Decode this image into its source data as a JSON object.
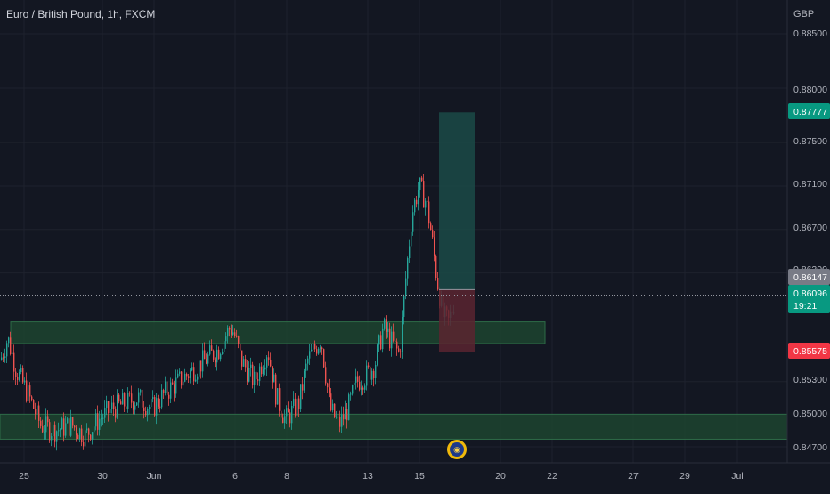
{
  "header": {
    "symbol_title": "Euro / British Pound, 1h, FXCM",
    "currency": "GBP"
  },
  "price_axis": {
    "ticks": [
      "0.88500",
      "0.88000",
      "0.87500",
      "0.87100",
      "0.86700",
      "0.86300",
      "0.85300",
      "0.85000",
      "0.84700"
    ]
  },
  "time_axis": {
    "ticks": [
      "25",
      "30",
      "Jun",
      "6",
      "8",
      "13",
      "15",
      "20",
      "22",
      "27",
      "29",
      "Jul"
    ]
  },
  "badges": {
    "target_price": "0.87777",
    "entry_price": "0.86147",
    "last_price": "0.86096",
    "countdown": "19:21",
    "stop_price": "0.85575"
  },
  "colors": {
    "background": "#131722",
    "grid": "#1e222d",
    "up_candle": "#26a69a",
    "down_candle": "#ef5350",
    "zone_fill": "#1f4b32",
    "target_fill": "#1b4a46",
    "stop_fill": "#5a2430",
    "target_badge": "#089981",
    "stop_badge": "#f23645",
    "entry_badge": "#787b86",
    "last_badge": "#089981"
  },
  "chart_data": {
    "type": "candlestick",
    "symbol": "EURGBP",
    "timeframe": "1h",
    "y_range": [
      0.846,
      0.887
    ],
    "x_ticks": [
      "25",
      "30",
      "Jun",
      "6",
      "8",
      "13",
      "15",
      "20",
      "22",
      "27",
      "29",
      "Jul"
    ],
    "y_ticks": [
      0.885,
      0.88,
      0.875,
      0.871,
      0.867,
      0.863,
      0.853,
      0.85,
      0.847
    ],
    "series_path": [
      [
        0,
        0.855
      ],
      [
        8,
        0.857
      ],
      [
        18,
        0.854
      ],
      [
        30,
        0.852
      ],
      [
        45,
        0.849
      ],
      [
        60,
        0.8485
      ],
      [
        80,
        0.849
      ],
      [
        95,
        0.848
      ],
      [
        110,
        0.8495
      ],
      [
        125,
        0.8505
      ],
      [
        140,
        0.851
      ],
      [
        155,
        0.8515
      ],
      [
        170,
        0.8505
      ],
      [
        185,
        0.852
      ],
      [
        200,
        0.853
      ],
      [
        215,
        0.854
      ],
      [
        230,
        0.855
      ],
      [
        245,
        0.856
      ],
      [
        258,
        0.858
      ],
      [
        262,
        0.8575
      ],
      [
        270,
        0.855
      ],
      [
        285,
        0.853
      ],
      [
        300,
        0.856
      ],
      [
        310,
        0.8515
      ],
      [
        320,
        0.8495
      ],
      [
        335,
        0.851
      ],
      [
        345,
        0.855
      ],
      [
        360,
        0.857
      ],
      [
        370,
        0.8505
      ],
      [
        380,
        0.849
      ],
      [
        390,
        0.8505
      ],
      [
        400,
        0.853
      ],
      [
        410,
        0.8535
      ],
      [
        420,
        0.8545
      ],
      [
        430,
        0.858
      ],
      [
        440,
        0.8565
      ],
      [
        448,
        0.8555
      ],
      [
        455,
        0.8625
      ],
      [
        462,
        0.8685
      ],
      [
        470,
        0.871
      ],
      [
        478,
        0.8695
      ],
      [
        483,
        0.867
      ],
      [
        490,
        0.8625
      ],
      [
        497,
        0.859
      ],
      [
        503,
        0.8585
      ],
      [
        510,
        0.8605
      ]
    ],
    "support_zones": [
      {
        "from": 0.8585,
        "to": 0.8565
      },
      {
        "from": 0.85,
        "to": 0.8477
      }
    ],
    "position": {
      "side": "long",
      "target": 0.87777,
      "entry": 0.86147,
      "stop": 0.85575
    },
    "last_price": 0.86096
  }
}
